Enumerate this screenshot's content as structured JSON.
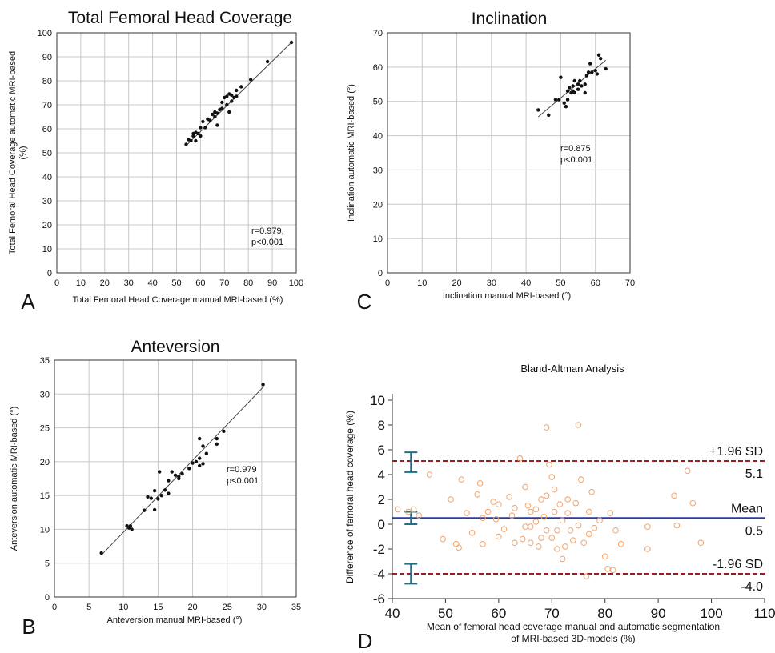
{
  "colors": {
    "ba_points": "#f0a46b",
    "ba_mean": "#2b3d9a",
    "ba_limits": "#9b1c1c",
    "ba_ci": "#1f6f86",
    "grid": "#c8c8c8"
  },
  "chart_data": [
    {
      "id": "A",
      "panel_label": "A",
      "type": "scatter",
      "title": "Total Femoral Head Coverage",
      "xlabel": "Total Femoral Head Coverage manual MRI-based (%)",
      "ylabel": "Total Femoral Head Coverage automatic MRI-based (%)",
      "xlim": [
        0,
        100
      ],
      "ylim": [
        0,
        100
      ],
      "xticks": [
        0,
        10,
        20,
        30,
        40,
        50,
        60,
        70,
        80,
        90,
        100
      ],
      "yticks": [
        0,
        10,
        20,
        30,
        40,
        50,
        60,
        70,
        80,
        90,
        100
      ],
      "grid": true,
      "trendline": [
        [
          54,
          53
        ],
        [
          98,
          96
        ]
      ],
      "annotation": [
        "r=0.979,",
        "p<0.001"
      ],
      "points": [
        [
          54,
          53.5
        ],
        [
          55,
          55.5
        ],
        [
          56,
          55
        ],
        [
          57,
          57
        ],
        [
          57,
          58
        ],
        [
          58,
          55
        ],
        [
          58,
          58.5
        ],
        [
          59,
          58
        ],
        [
          60,
          57
        ],
        [
          60,
          60.5
        ],
        [
          61,
          63
        ],
        [
          62,
          60.5
        ],
        [
          63,
          64
        ],
        [
          64,
          63.5
        ],
        [
          65,
          66
        ],
        [
          66,
          65
        ],
        [
          66,
          67
        ],
        [
          67,
          61.5
        ],
        [
          67,
          66.5
        ],
        [
          68,
          68
        ],
        [
          69,
          71
        ],
        [
          69,
          68.5
        ],
        [
          70,
          73
        ],
        [
          71,
          70
        ],
        [
          71,
          73.5
        ],
        [
          72,
          67
        ],
        [
          72,
          74.5
        ],
        [
          73,
          71.5
        ],
        [
          73,
          74
        ],
        [
          74,
          73
        ],
        [
          75,
          76
        ],
        [
          75,
          73.5
        ],
        [
          77,
          77.5
        ],
        [
          81,
          80.5
        ],
        [
          88,
          88
        ],
        [
          98,
          96
        ]
      ]
    },
    {
      "id": "C",
      "panel_label": "C",
      "type": "scatter",
      "title": "Inclination",
      "xlabel": "Inclination manual MRI-based (°)",
      "ylabel": "Inclination automatic MRI-based (°)",
      "xlim": [
        0,
        70
      ],
      "ylim": [
        0,
        70
      ],
      "xticks": [
        0,
        10,
        20,
        30,
        40,
        50,
        60,
        70
      ],
      "yticks": [
        0,
        10,
        20,
        30,
        40,
        50,
        60,
        70
      ],
      "grid": true,
      "trendline": [
        [
          43.5,
          45.5
        ],
        [
          63,
          62
        ]
      ],
      "annotation": [
        "r=0.875",
        "p<0.001"
      ],
      "points": [
        [
          43.5,
          47.5
        ],
        [
          46.5,
          46
        ],
        [
          48.5,
          50.5
        ],
        [
          49.5,
          50.5
        ],
        [
          50,
          57
        ],
        [
          51,
          49.5
        ],
        [
          51.5,
          48.5
        ],
        [
          52,
          53
        ],
        [
          52,
          50.5
        ],
        [
          52.5,
          54
        ],
        [
          53,
          52.5
        ],
        [
          53.5,
          53
        ],
        [
          53.5,
          54.5
        ],
        [
          54,
          52.5
        ],
        [
          54,
          56
        ],
        [
          55,
          55
        ],
        [
          55,
          53.5
        ],
        [
          55.5,
          56
        ],
        [
          56,
          54.5
        ],
        [
          57,
          55
        ],
        [
          57,
          52.5
        ],
        [
          57.5,
          57.5
        ],
        [
          58,
          58.5
        ],
        [
          58.5,
          61
        ],
        [
          59,
          58.5
        ],
        [
          60,
          59
        ],
        [
          60.5,
          58
        ],
        [
          61,
          63.5
        ],
        [
          61.5,
          62.5
        ],
        [
          63,
          59.5
        ]
      ]
    },
    {
      "id": "B",
      "panel_label": "B",
      "type": "scatter",
      "title": "Anteversion",
      "xlabel": "Anteversion manual MRI-based (°)",
      "ylabel": "Anteversion automatic MRI-based (°)",
      "xlim": [
        0,
        35
      ],
      "ylim": [
        0,
        35
      ],
      "xticks": [
        0,
        5,
        10,
        15,
        20,
        25,
        30,
        35
      ],
      "yticks": [
        0,
        5,
        10,
        15,
        20,
        25,
        30,
        35
      ],
      "grid": true,
      "trendline": [
        [
          6.8,
          6.2
        ],
        [
          30.2,
          31.0
        ]
      ],
      "annotation": [
        "r=0.979",
        "p<0.001"
      ],
      "points": [
        [
          6.8,
          6.5
        ],
        [
          10.5,
          10.5
        ],
        [
          10.8,
          10.2
        ],
        [
          11,
          10.5
        ],
        [
          11.2,
          10
        ],
        [
          13,
          12.8
        ],
        [
          13.5,
          14.8
        ],
        [
          14,
          14.6
        ],
        [
          14.5,
          15.7
        ],
        [
          14.5,
          12.9
        ],
        [
          15,
          14.5
        ],
        [
          15.2,
          18.5
        ],
        [
          15.5,
          15
        ],
        [
          16,
          15.8
        ],
        [
          16.5,
          15.3
        ],
        [
          16.5,
          17.2
        ],
        [
          17,
          18.5
        ],
        [
          17.5,
          18
        ],
        [
          18,
          17.5
        ],
        [
          18,
          17.8
        ],
        [
          18.5,
          18.2
        ],
        [
          19.5,
          19
        ],
        [
          20,
          19.8
        ],
        [
          20.5,
          20
        ],
        [
          21,
          20.5
        ],
        [
          21,
          19.4
        ],
        [
          21.5,
          19.7
        ],
        [
          21,
          23.4
        ],
        [
          21.5,
          22.3
        ],
        [
          22,
          21.2
        ],
        [
          23.5,
          22.6
        ],
        [
          23.5,
          23.4
        ],
        [
          24.5,
          24.5
        ],
        [
          30.2,
          31.4
        ]
      ]
    },
    {
      "id": "D",
      "panel_label": "D",
      "type": "scatter",
      "subtype": "bland-altman",
      "title": "Bland-Altman Analysis",
      "xlabel": "Mean of femoral head coverage manual and automatic segmentation of MRI-based 3D-models (%)",
      "xlabel_lines": [
        "Mean of femoral head coverage manual and automatic segmentation",
        "of MRI-based 3D-models (%)"
      ],
      "ylabel": "Difference of femoral head coverage (%)",
      "xlim": [
        40,
        110
      ],
      "ylim": [
        -6,
        10
      ],
      "xticks": [
        40,
        50,
        60,
        70,
        80,
        90,
        100,
        110
      ],
      "yticks": [
        -6,
        -4,
        -2,
        0,
        2,
        4,
        6,
        8,
        10
      ],
      "grid": false,
      "lines": [
        {
          "name": "+1.96 SD",
          "value": 5.1,
          "value_label": "5.1",
          "style": "dashed"
        },
        {
          "name": "Mean",
          "value": 0.5,
          "value_label": "0.5",
          "style": "solid"
        },
        {
          "name": "-1.96 SD",
          "value": -4.0,
          "value_label": "-4.0",
          "style": "dashed"
        }
      ],
      "confidence_intervals": [
        {
          "x": 43.5,
          "low": 4.2,
          "high": 5.8
        },
        {
          "x": 43.5,
          "low": 0.0,
          "high": 1.0
        },
        {
          "x": 43.5,
          "low": -4.8,
          "high": -3.2
        }
      ],
      "points": [
        [
          41,
          1.2
        ],
        [
          43,
          1.0
        ],
        [
          44,
          1.2
        ],
        [
          45,
          0.7
        ],
        [
          47,
          4.0
        ],
        [
          49.5,
          -1.2
        ],
        [
          51,
          2.0
        ],
        [
          52,
          -1.6
        ],
        [
          52.5,
          -1.9
        ],
        [
          53,
          3.6
        ],
        [
          54,
          0.9
        ],
        [
          55,
          -0.7
        ],
        [
          56,
          2.4
        ],
        [
          56.5,
          3.3
        ],
        [
          57,
          0.5
        ],
        [
          57,
          -1.6
        ],
        [
          58,
          1.0
        ],
        [
          59,
          1.8
        ],
        [
          59.5,
          0.4
        ],
        [
          60,
          1.6
        ],
        [
          60,
          -1.0
        ],
        [
          61,
          -0.4
        ],
        [
          62,
          2.2
        ],
        [
          62.5,
          0.7
        ],
        [
          63,
          -1.5
        ],
        [
          63,
          1.3
        ],
        [
          64,
          5.3
        ],
        [
          64.5,
          -1.2
        ],
        [
          65,
          3.0
        ],
        [
          65,
          -0.2
        ],
        [
          65.5,
          1.5
        ],
        [
          66,
          1.0
        ],
        [
          66,
          -0.2
        ],
        [
          66,
          -1.5
        ],
        [
          67,
          1.2
        ],
        [
          67,
          0.2
        ],
        [
          67.5,
          -1.8
        ],
        [
          68,
          2.0
        ],
        [
          68,
          -1.1
        ],
        [
          68.5,
          0.6
        ],
        [
          69,
          7.8
        ],
        [
          69,
          2.3
        ],
        [
          69,
          -0.5
        ],
        [
          69.5,
          4.8
        ],
        [
          70,
          3.8
        ],
        [
          70,
          -1.1
        ],
        [
          70.5,
          2.8
        ],
        [
          70.5,
          1.0
        ],
        [
          71,
          -0.5
        ],
        [
          71,
          -2.0
        ],
        [
          71.5,
          1.6
        ],
        [
          72,
          0.3
        ],
        [
          72,
          -2.8
        ],
        [
          72.5,
          -1.8
        ],
        [
          73,
          2.0
        ],
        [
          73,
          0.9
        ],
        [
          73.5,
          -0.5
        ],
        [
          74,
          -1.3
        ],
        [
          74.5,
          1.7
        ],
        [
          75,
          8.0
        ],
        [
          75,
          -0.1
        ],
        [
          75.5,
          3.6
        ],
        [
          76,
          -1.5
        ],
        [
          76.5,
          -4.2
        ],
        [
          77,
          -0.8
        ],
        [
          77,
          1.0
        ],
        [
          77.5,
          2.6
        ],
        [
          78,
          -0.3
        ],
        [
          79,
          0.3
        ],
        [
          80,
          -2.6
        ],
        [
          80.5,
          -3.6
        ],
        [
          81,
          0.9
        ],
        [
          81.5,
          -3.7
        ],
        [
          82,
          -0.5
        ],
        [
          83,
          -1.6
        ],
        [
          88,
          -0.2
        ],
        [
          88,
          -2.0
        ],
        [
          93,
          2.3
        ],
        [
          93.5,
          -0.1
        ],
        [
          95.5,
          4.3
        ],
        [
          96.5,
          1.7
        ],
        [
          98,
          -1.5
        ]
      ]
    }
  ]
}
